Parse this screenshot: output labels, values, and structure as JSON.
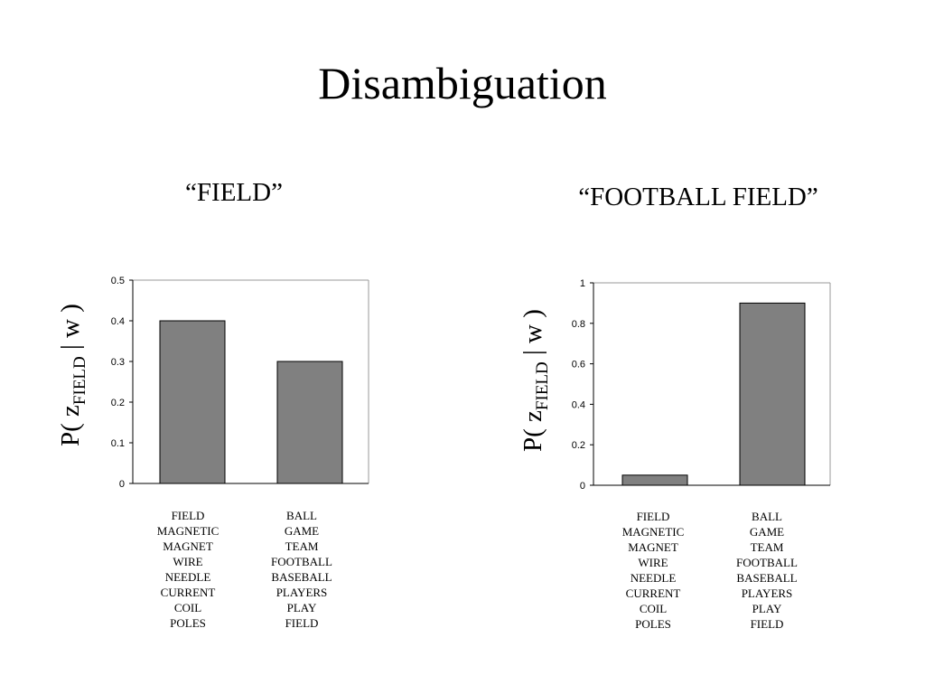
{
  "slide": {
    "title": "Disambiguation"
  },
  "chart_data": [
    {
      "type": "bar",
      "title": "“FIELD”",
      "ylabel": {
        "main": "P( z",
        "sub": "FIELD",
        "tail": " | w )"
      },
      "ylim": [
        0,
        0.5
      ],
      "yticks": [
        "0",
        "0.1",
        "0.2",
        "0.3",
        "0.4",
        "0.5"
      ],
      "ytick_values": [
        0,
        0.1,
        0.2,
        0.3,
        0.4,
        0.5
      ],
      "values": [
        0.4,
        0.3
      ],
      "bar_color": "#808080",
      "categories": [
        [
          "FIELD",
          "MAGNETIC",
          "MAGNET",
          "WIRE",
          "NEEDLE",
          "CURRENT",
          "COIL",
          "POLES"
        ],
        [
          "BALL",
          "GAME",
          "TEAM",
          "FOOTBALL",
          "BASEBALL",
          "PLAYERS",
          "PLAY",
          "FIELD"
        ]
      ]
    },
    {
      "type": "bar",
      "title": "“FOOTBALL FIELD”",
      "ylabel": {
        "main": "P( z",
        "sub": "FIELD",
        "tail": " | w )"
      },
      "ylim": [
        0,
        1
      ],
      "yticks": [
        "0",
        "0.2",
        "0.4",
        "0.6",
        "0.8",
        "1"
      ],
      "ytick_values": [
        0,
        0.2,
        0.4,
        0.6,
        0.8,
        1
      ],
      "values": [
        0.05,
        0.9
      ],
      "bar_color": "#808080",
      "categories": [
        [
          "FIELD",
          "MAGNETIC",
          "MAGNET",
          "WIRE",
          "NEEDLE",
          "CURRENT",
          "COIL",
          "POLES"
        ],
        [
          "BALL",
          "GAME",
          "TEAM",
          "FOOTBALL",
          "BASEBALL",
          "PLAYERS",
          "PLAY",
          "FIELD"
        ]
      ]
    }
  ]
}
